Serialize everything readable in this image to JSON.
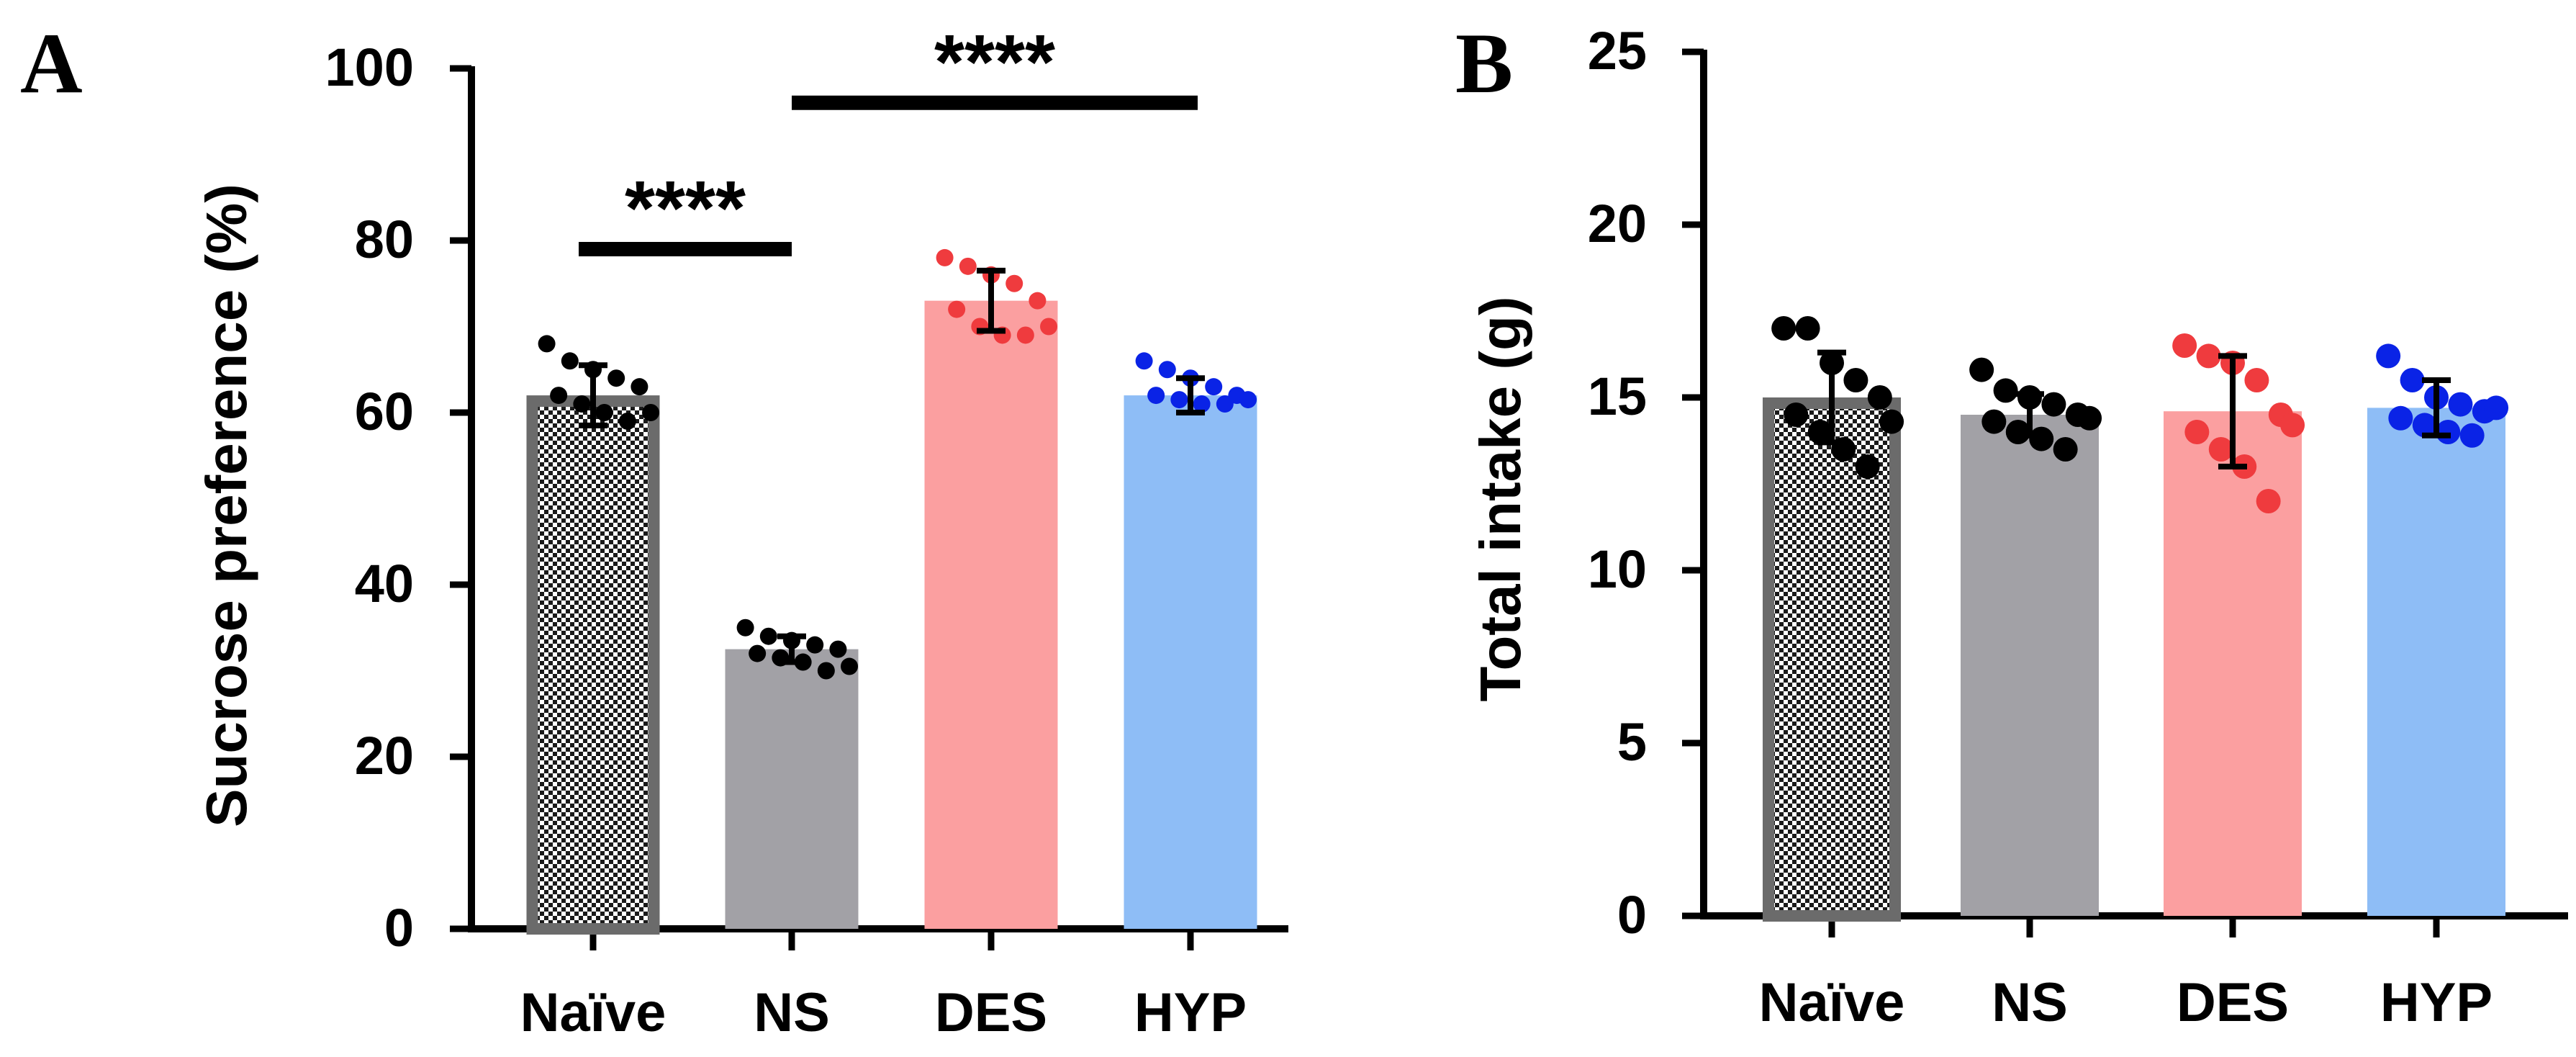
{
  "colors": {
    "naive_bar": "#6b6b6b",
    "ns_bar": "#a2a1a6",
    "des_bar": "#fb9fa0",
    "hyp_bar": "#8ebdf6",
    "black_point": "#000000",
    "des_point": "#ef3b3e",
    "hyp_point": "#0a23e6"
  },
  "chart_data": [
    {
      "type": "bar",
      "panel": "A",
      "ylabel": "Sucrose preference (%)",
      "ylim": [
        0,
        100
      ],
      "yticks": [
        "0",
        "20",
        "40",
        "60",
        "80",
        "100"
      ],
      "categories": [
        "Naïve",
        "NS",
        "DES",
        "HYP"
      ],
      "values": [
        62,
        32.5,
        73,
        62
      ],
      "error": [
        3.5,
        1.5,
        3.5,
        2
      ],
      "points": [
        [
          68,
          66,
          65,
          64,
          63,
          62,
          61,
          60,
          59,
          60
        ],
        [
          35,
          34,
          33.5,
          33,
          32.5,
          32,
          31.5,
          31,
          30,
          30.5
        ],
        [
          78,
          77,
          76,
          75,
          73,
          72,
          70,
          69,
          69,
          70
        ],
        [
          66,
          65,
          64,
          63,
          62,
          62,
          61.5,
          61,
          61,
          61.5
        ]
      ],
      "significance": [
        {
          "from": "Naïve",
          "to": "NS",
          "label": "****",
          "y": 79
        },
        {
          "from": "NS",
          "to": "HYP",
          "label": "****",
          "y": 96
        }
      ]
    },
    {
      "type": "bar",
      "panel": "B",
      "ylabel": "Total intake (g)",
      "ylim": [
        0,
        25
      ],
      "yticks": [
        "0",
        "5",
        "10",
        "15",
        "20",
        "25"
      ],
      "categories": [
        "Naïve",
        "NS",
        "DES",
        "HYP"
      ],
      "values": [
        15,
        14.5,
        14.6,
        14.7
      ],
      "error": [
        1.3,
        0.6,
        1.6,
        0.8
      ],
      "points": [
        [
          17,
          17,
          16,
          15.5,
          15,
          14.5,
          14,
          13.5,
          13,
          14.3
        ],
        [
          15.8,
          15.2,
          15,
          14.8,
          14.5,
          14.3,
          14,
          13.8,
          13.5,
          14.4
        ],
        [
          16.5,
          16.2,
          16,
          15.5,
          14.5,
          14,
          13.5,
          13,
          12,
          14.2
        ],
        [
          16.2,
          15.5,
          15,
          14.8,
          14.6,
          14.4,
          14.2,
          14,
          13.9,
          14.7
        ]
      ],
      "significance": []
    }
  ]
}
